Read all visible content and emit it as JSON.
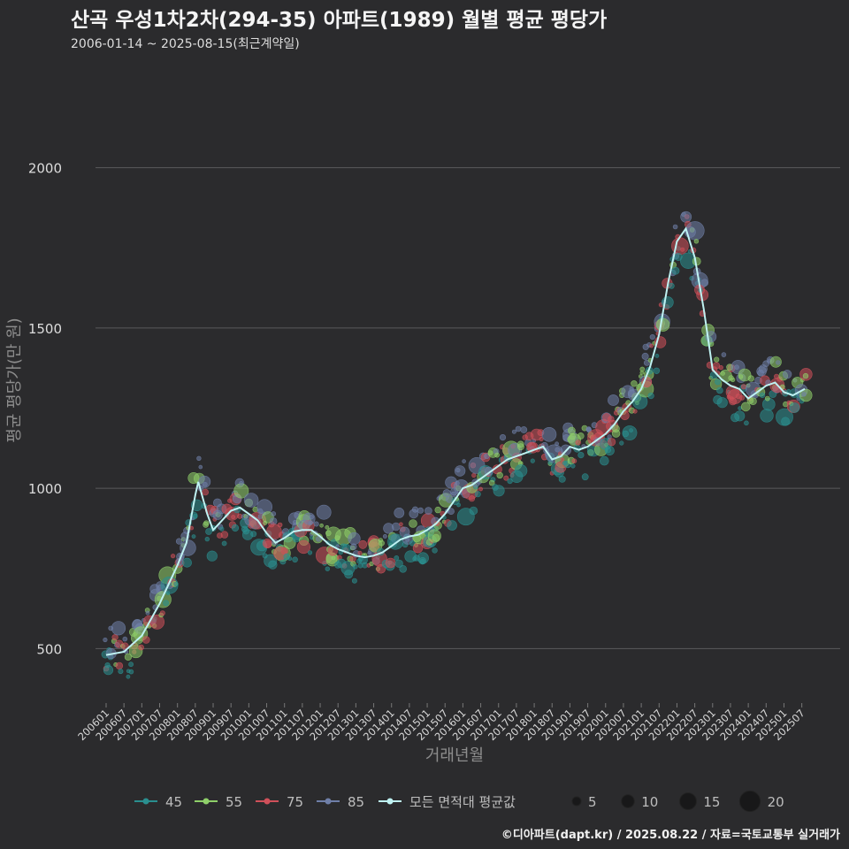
{
  "chart_data": {
    "type": "scatter",
    "title": "산곡 우성1차2차(294-35) 아파트(1989) 월별 평균 평당가",
    "subtitle": "2006-01-14 ~ 2025-08-15(최근계약일)",
    "xlabel": "거래년월",
    "ylabel": "평균 평당가(만 원)",
    "x_range": [
      "2006-01",
      "2025-08"
    ],
    "ylim": [
      330,
      2330
    ],
    "y_ticks": [
      500,
      1000,
      1500,
      2000
    ],
    "x_ticks": [
      "200601",
      "200607",
      "200701",
      "200707",
      "200801",
      "200807",
      "200901",
      "200907",
      "201001",
      "201007",
      "201101",
      "201107",
      "201201",
      "201207",
      "201301",
      "201307",
      "201401",
      "201407",
      "201501",
      "201507",
      "201601",
      "201607",
      "201701",
      "201707",
      "201801",
      "201807",
      "201901",
      "201907",
      "202001",
      "202007",
      "202101",
      "202107",
      "202201",
      "202207",
      "202301",
      "202307",
      "202401",
      "202407",
      "202501",
      "202507"
    ],
    "grid": "horizontal",
    "legend_position": "bottom",
    "series": [
      {
        "name": "45",
        "color": "#2a8f8f"
      },
      {
        "name": "55",
        "color": "#8fd06a"
      },
      {
        "name": "75",
        "color": "#d0505a"
      },
      {
        "name": "85",
        "color": "#6f7fa8"
      }
    ],
    "average_line": {
      "name": "모든 면적대 평균값",
      "color": "#bff2f2",
      "points": [
        [
          "2006-01",
          480
        ],
        [
          "2006-07",
          490
        ],
        [
          "2007-01",
          540
        ],
        [
          "2007-07",
          640
        ],
        [
          "2008-01",
          760
        ],
        [
          "2008-04",
          830
        ],
        [
          "2008-07",
          980
        ],
        [
          "2008-08",
          1020
        ],
        [
          "2008-11",
          920
        ],
        [
          "2009-01",
          870
        ],
        [
          "2009-04",
          900
        ],
        [
          "2009-07",
          930
        ],
        [
          "2009-10",
          940
        ],
        [
          "2010-01",
          920
        ],
        [
          "2010-04",
          900
        ],
        [
          "2010-07",
          860
        ],
        [
          "2010-10",
          830
        ],
        [
          "2011-01",
          845
        ],
        [
          "2011-04",
          865
        ],
        [
          "2011-07",
          870
        ],
        [
          "2011-10",
          870
        ],
        [
          "2012-01",
          850
        ],
        [
          "2012-04",
          825
        ],
        [
          "2012-07",
          810
        ],
        [
          "2012-10",
          800
        ],
        [
          "2013-01",
          790
        ],
        [
          "2013-04",
          785
        ],
        [
          "2013-07",
          790
        ],
        [
          "2013-10",
          800
        ],
        [
          "2014-01",
          820
        ],
        [
          "2014-04",
          840
        ],
        [
          "2014-07",
          850
        ],
        [
          "2014-10",
          855
        ],
        [
          "2015-01",
          870
        ],
        [
          "2015-04",
          890
        ],
        [
          "2015-07",
          920
        ],
        [
          "2015-10",
          960
        ],
        [
          "2016-01",
          1000
        ],
        [
          "2016-04",
          1010
        ],
        [
          "2016-07",
          1030
        ],
        [
          "2016-10",
          1050
        ],
        [
          "2017-01",
          1070
        ],
        [
          "2017-04",
          1090
        ],
        [
          "2017-07",
          1100
        ],
        [
          "2017-10",
          1110
        ],
        [
          "2018-01",
          1120
        ],
        [
          "2018-04",
          1130
        ],
        [
          "2018-07",
          1090
        ],
        [
          "2018-10",
          1100
        ],
        [
          "2019-01",
          1130
        ],
        [
          "2019-04",
          1120
        ],
        [
          "2019-07",
          1130
        ],
        [
          "2019-10",
          1150
        ],
        [
          "2020-01",
          1170
        ],
        [
          "2020-04",
          1200
        ],
        [
          "2020-07",
          1240
        ],
        [
          "2020-10",
          1270
        ],
        [
          "2021-01",
          1310
        ],
        [
          "2021-04",
          1380
        ],
        [
          "2021-07",
          1480
        ],
        [
          "2021-10",
          1640
        ],
        [
          "2022-01",
          1770
        ],
        [
          "2022-04",
          1810
        ],
        [
          "2022-07",
          1720
        ],
        [
          "2022-10",
          1560
        ],
        [
          "2023-01",
          1370
        ],
        [
          "2023-04",
          1340
        ],
        [
          "2023-07",
          1320
        ],
        [
          "2023-10",
          1310
        ],
        [
          "2024-01",
          1280
        ],
        [
          "2024-04",
          1300
        ],
        [
          "2024-07",
          1320
        ],
        [
          "2024-10",
          1330
        ],
        [
          "2025-01",
          1300
        ],
        [
          "2025-04",
          1290
        ],
        [
          "2025-08",
          1310
        ]
      ]
    },
    "size_legend": [
      {
        "label": "5",
        "value": 5
      },
      {
        "label": "10",
        "value": 10
      },
      {
        "label": "15",
        "value": 15
      },
      {
        "label": "20",
        "value": 20
      }
    ]
  },
  "footer": {
    "credit": "©디아파트(dapt.kr) / 2025.08.22 / 자료=국토교통부 실거래가"
  }
}
